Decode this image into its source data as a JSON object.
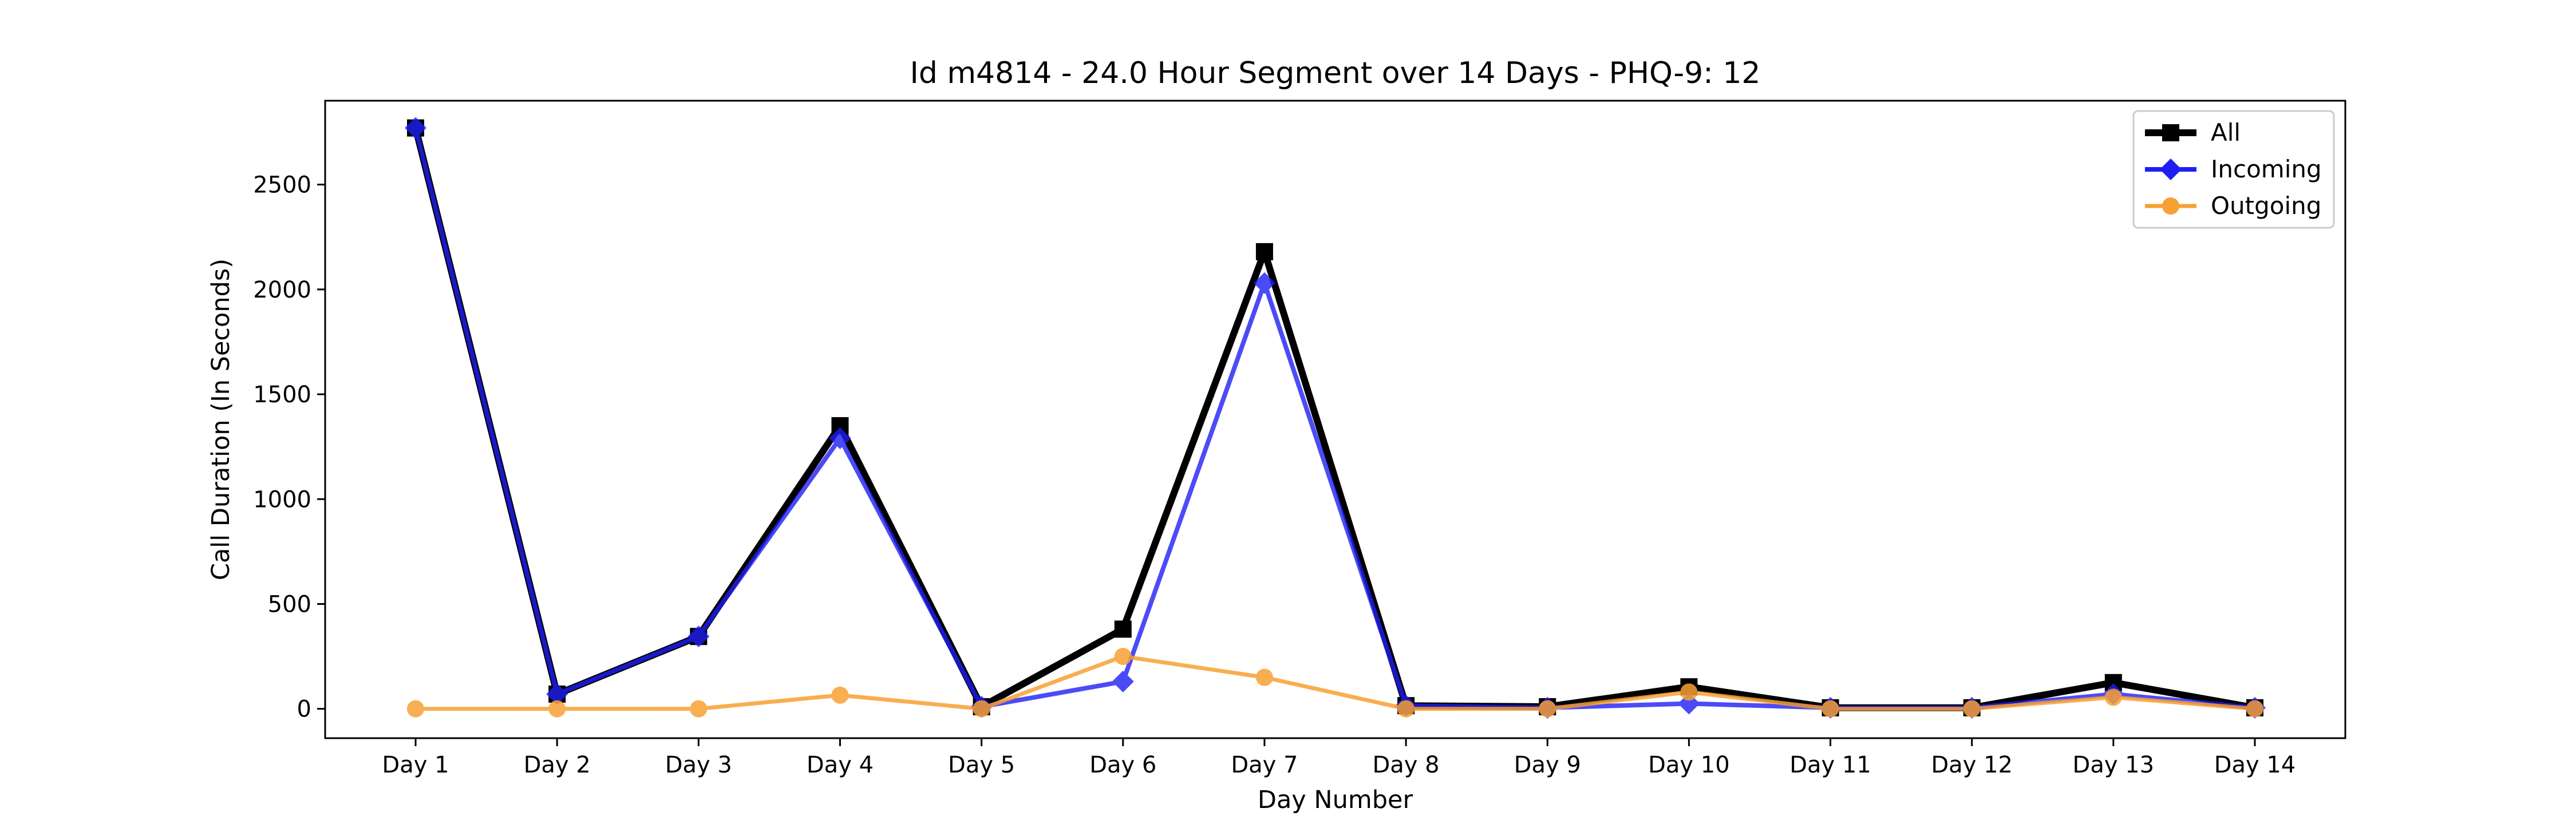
{
  "chart_data": {
    "type": "line",
    "title": "Id m4814 - 24.0 Hour Segment over 14 Days - PHQ-9: 12",
    "xlabel": "Day Number",
    "ylabel": "Call Duration (In Seconds)",
    "categories": [
      "Day 1",
      "Day 2",
      "Day 3",
      "Day 4",
      "Day 5",
      "Day 6",
      "Day 7",
      "Day 8",
      "Day 9",
      "Day 10",
      "Day 11",
      "Day 12",
      "Day 13",
      "Day 14"
    ],
    "ylim": [
      -140,
      2900
    ],
    "yticks": [
      0,
      500,
      1000,
      1500,
      2000,
      2500
    ],
    "grid": false,
    "legend_position": "top-right",
    "series": [
      {
        "name": "All",
        "color": "#000000",
        "marker": "square",
        "values": [
          2770,
          70,
          345,
          1350,
          10,
          380,
          2180,
          15,
          10,
          105,
          5,
          5,
          125,
          5
        ]
      },
      {
        "name": "Incoming",
        "color": "#1f1ff5",
        "marker": "diamond",
        "values": [
          2770,
          70,
          345,
          1290,
          10,
          130,
          2030,
          15,
          5,
          25,
          5,
          5,
          70,
          5
        ]
      },
      {
        "name": "Outgoing",
        "color": "#f7a033",
        "marker": "circle",
        "values": [
          0,
          0,
          0,
          65,
          0,
          250,
          150,
          0,
          0,
          80,
          0,
          0,
          55,
          0
        ]
      }
    ]
  }
}
